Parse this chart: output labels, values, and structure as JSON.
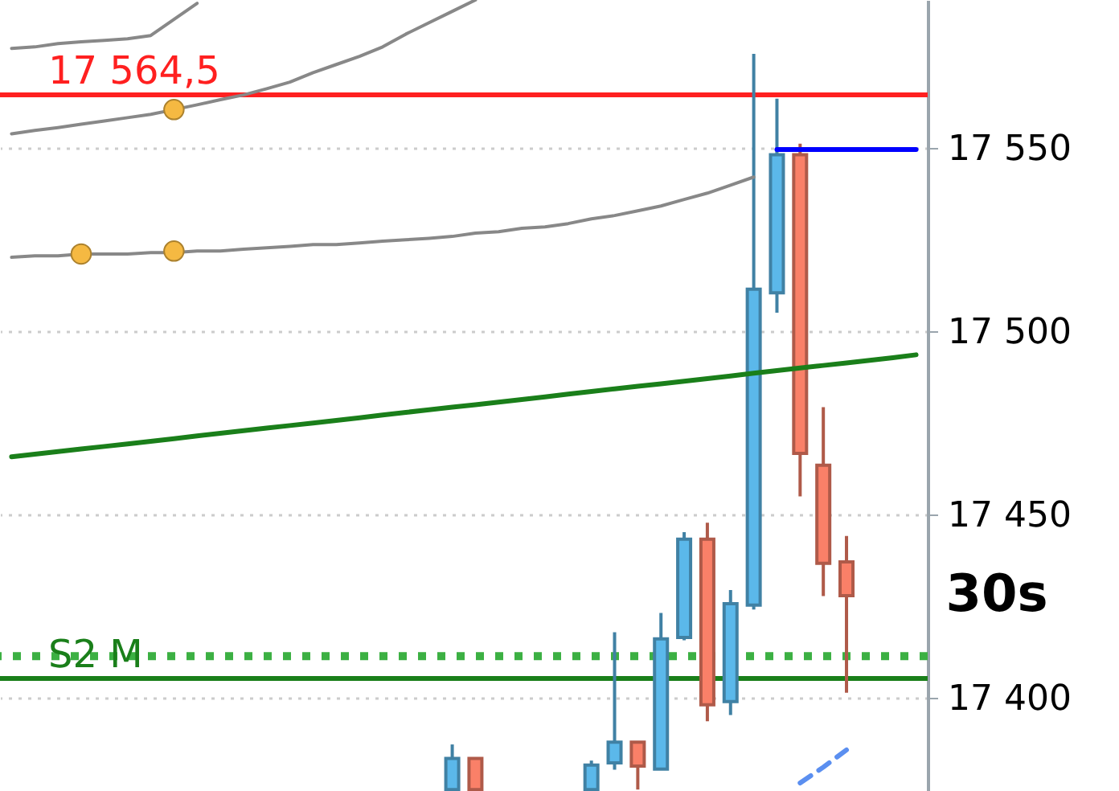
{
  "chart_data": {
    "type": "candlestick",
    "categories": [
      null,
      null,
      null,
      null,
      null,
      null,
      null,
      null,
      null,
      null,
      null,
      null,
      null,
      null,
      null,
      null,
      null,
      null,
      null,
      null,
      null,
      null,
      null,
      null,
      null,
      null,
      null,
      null,
      null,
      null,
      null,
      null,
      null,
      null,
      null,
      null,
      null,
      null,
      null,
      null
    ],
    "ohlc": [
      null,
      null,
      null,
      null,
      null,
      null,
      null,
      null,
      null,
      null,
      null,
      null,
      null,
      null,
      null,
      null,
      null,
      null,
      null,
      [
        17375,
        17387.3,
        17375,
        17383.5
      ],
      [
        17383.5,
        17383.5,
        17375,
        17375
      ],
      null,
      null,
      null,
      null,
      [
        17375,
        17382.9,
        17375,
        17381.7
      ],
      [
        17382.3,
        17417.9,
        17380.4,
        17387.9
      ],
      [
        17387.9,
        17387.9,
        17375,
        17381.4
      ],
      [
        17380.6,
        17423.2,
        17380.6,
        17416.1
      ],
      [
        17416.5,
        17445.2,
        17415.7,
        17443.3
      ],
      [
        17443.3,
        17447.8,
        17393.6,
        17398.1
      ],
      [
        17399.0,
        17429.4,
        17395.3,
        17425.7
      ],
      [
        17425.3,
        17575.7,
        17424.1,
        17511.5
      ],
      [
        17510.5,
        17563.5,
        17505.1,
        17548.2
      ],
      [
        17548.2,
        17551.2,
        17455.0,
        17466.7
      ],
      [
        17463.5,
        17479.3,
        17427.8,
        17436.7
      ],
      [
        17437.1,
        17444.2,
        17401.4,
        17427.9
      ],
      null,
      null,
      null
    ],
    "colors": [
      null,
      null,
      null,
      null,
      null,
      null,
      null,
      null,
      null,
      null,
      null,
      null,
      null,
      null,
      null,
      null,
      null,
      null,
      null,
      "#5bb8ea",
      "#fa8068",
      null,
      null,
      null,
      null,
      "#5bb8ea",
      "#5bb8ea",
      "#fa8068",
      "#5bb8ea",
      "#5bb8ea",
      "#fa8068",
      "#5bb8ea",
      "#5bb8ea",
      "#5bb8ea",
      "#fa8068",
      "#fa8068",
      "#fa8068",
      null,
      null,
      null
    ],
    "series": [
      {
        "type": "line",
        "color": "#888888",
        "values": [
          17520.2,
          17520.6,
          17520.6,
          17521.1,
          17521.1,
          17521.1,
          17521.5,
          17521.5,
          17521.9,
          17521.9,
          17522.4,
          17522.8,
          17523.2,
          17523.7,
          17523.7,
          17524.1,
          17524.6,
          17525.0,
          17525.4,
          17525.9,
          17526.8,
          17527.2,
          17528.1,
          17528.5,
          17529.4,
          17530.7,
          17531.6,
          17532.9,
          17534.2,
          17536.0,
          17537.7,
          17539.9,
          17542.1,
          null,
          null,
          null,
          null,
          null,
          null,
          null
        ]
      },
      {
        "type": "line",
        "color": "#888888",
        "values": [
          17553.9,
          17554.8,
          17555.6,
          17556.5,
          17557.4,
          17558.3,
          17559.2,
          17560.5,
          17561.8,
          17563.2,
          17564.5,
          17566.2,
          17568.0,
          17570.6,
          17572.8,
          17575.0,
          17577.6,
          17581.1,
          17584.2,
          17587.3,
          17590.4,
          null,
          null,
          null,
          null,
          null,
          null,
          null,
          null,
          null,
          null,
          null,
          null,
          null,
          null,
          null,
          null,
          null,
          null,
          null
        ]
      },
      {
        "type": "line",
        "color": "#888888",
        "values": [
          17577.2,
          17577.6,
          17578.5,
          17579.0,
          17579.4,
          17579.8,
          17580.7,
          17585.1,
          17589.5,
          null,
          null,
          null,
          null,
          null,
          null,
          null,
          null,
          null,
          null,
          null,
          null,
          null,
          null,
          null,
          null,
          null,
          null,
          null,
          null,
          null,
          null,
          null,
          null,
          null,
          null,
          null,
          null,
          null,
          null,
          null
        ]
      },
      {
        "type": "line",
        "color": "#1a7f1a",
        "values": [
          17465.8,
          17466.5,
          17467.2,
          17467.9,
          17468.6,
          17469.3,
          17470.0,
          17470.7,
          17471.5,
          17472.2,
          17472.9,
          17473.6,
          17474.3,
          17475.0,
          17475.7,
          17476.4,
          17477.2,
          17477.9,
          17478.6,
          17479.3,
          17480.0,
          17480.7,
          17481.4,
          17482.1,
          17482.9,
          17483.6,
          17484.3,
          17485.0,
          17485.7,
          17486.4,
          17487.1,
          17487.8,
          17488.6,
          17489.3,
          17490.0,
          17490.7,
          17491.4,
          17492.1,
          17492.8,
          17493.6
        ]
      },
      {
        "type": "line",
        "color": "#0000ff",
        "values": [
          null,
          null,
          null,
          null,
          null,
          null,
          null,
          null,
          null,
          null,
          null,
          null,
          null,
          null,
          null,
          null,
          null,
          null,
          null,
          null,
          null,
          null,
          null,
          null,
          null,
          null,
          null,
          null,
          null,
          null,
          null,
          null,
          null,
          17549.6,
          17549.6,
          17549.6,
          17549.6,
          17549.6,
          17549.6,
          17549.6
        ]
      },
      {
        "type": "line",
        "color": "#5b8ff0",
        "line_style": "dashed",
        "values": [
          null,
          null,
          null,
          null,
          null,
          null,
          null,
          null,
          null,
          null,
          null,
          null,
          null,
          null,
          null,
          null,
          null,
          null,
          null,
          null,
          null,
          null,
          null,
          null,
          null,
          null,
          null,
          null,
          null,
          null,
          null,
          null,
          null,
          null,
          17376.8,
          17381.1,
          17385.8,
          null,
          null,
          null
        ]
      },
      {
        "type": "scatter",
        "color": "#f5b942",
        "marker": "circle",
        "values": [
          null,
          null,
          null,
          17521.1,
          null,
          null,
          null,
          17521.9,
          null,
          null,
          null,
          null,
          null,
          null,
          null,
          null,
          null,
          null,
          null,
          null,
          null,
          null,
          null,
          null,
          null,
          null,
          null,
          null,
          null,
          null,
          null,
          null,
          null,
          null,
          null,
          null,
          null,
          null,
          null,
          null
        ]
      },
      {
        "type": "scatter",
        "color": "#f5b942",
        "marker": "circle",
        "values": [
          null,
          null,
          null,
          null,
          null,
          null,
          null,
          17560.5,
          null,
          null,
          null,
          null,
          null,
          null,
          null,
          null,
          null,
          null,
          null,
          null,
          null,
          null,
          null,
          null,
          null,
          null,
          null,
          null,
          null,
          null,
          null,
          null,
          null,
          null,
          null,
          null,
          null,
          null,
          null,
          null
        ]
      }
    ],
    "ref_lines": [
      {
        "axis": "y",
        "value": 17564.5,
        "label": "17 564,5",
        "color": "#ff2020"
      },
      {
        "axis": "y",
        "value": 17411.4,
        "color": "#3cb043",
        "line_style": "dotted"
      },
      {
        "axis": "y",
        "value": 17405.3,
        "label": "S2 M",
        "color": "#1a7f1a"
      }
    ],
    "annotations": [
      "30s"
    ],
    "ylim": [
      17374.6,
      17590.4
    ],
    "yticks": [
      {
        "value": 17400,
        "label": "17 400"
      },
      {
        "value": 17450,
        "label": "17 450"
      },
      {
        "value": 17500,
        "label": "17 500"
      },
      {
        "value": 17550,
        "label": "17 550"
      }
    ],
    "grid": "y",
    "tick_labels": "y",
    "line_style": "solid"
  }
}
